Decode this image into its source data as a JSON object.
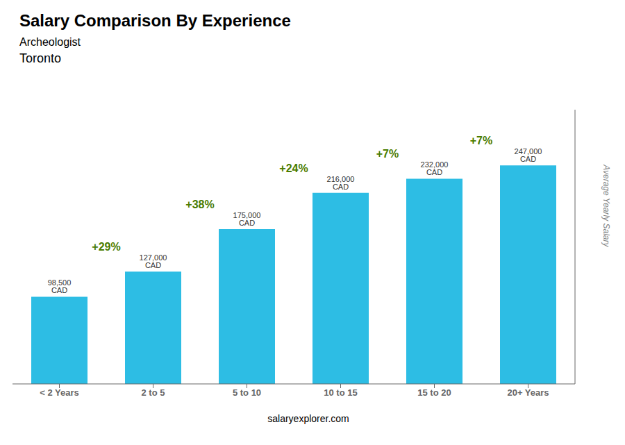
{
  "chart_data": {
    "type": "bar",
    "title": "Salary Comparison By Experience",
    "subtitle": [
      "Archeologist",
      "Toronto"
    ],
    "categories": [
      "< 2 Years",
      "2 to 5",
      "5 to 10",
      "10 to 15",
      "15 to 20",
      "20+ Years"
    ],
    "values": [
      98500,
      127000,
      175000,
      216000,
      232000,
      247000
    ],
    "value_labels": [
      "98,500 CAD",
      "127,000 CAD",
      "175,000 CAD",
      "216,000 CAD",
      "232,000 CAD",
      "247,000 CAD"
    ],
    "data_labels": true,
    "color": "#2dbde4",
    "ylabel": "Average Yearly Salary",
    "ylim": [
      0,
      310000
    ],
    "tick_labels": "x",
    "grid": false,
    "annotations": [
      {
        "text": "+29%",
        "x": "2 to 5"
      },
      {
        "text": "+38%",
        "x": "5 to 10"
      },
      {
        "text": "+24%",
        "x": "10 to 15"
      },
      {
        "text": "+7%",
        "x": "15 to 20"
      },
      {
        "text": "+7%",
        "x": "20+ Years"
      },
      {
        "text": "salaryexplorer.com"
      }
    ]
  }
}
